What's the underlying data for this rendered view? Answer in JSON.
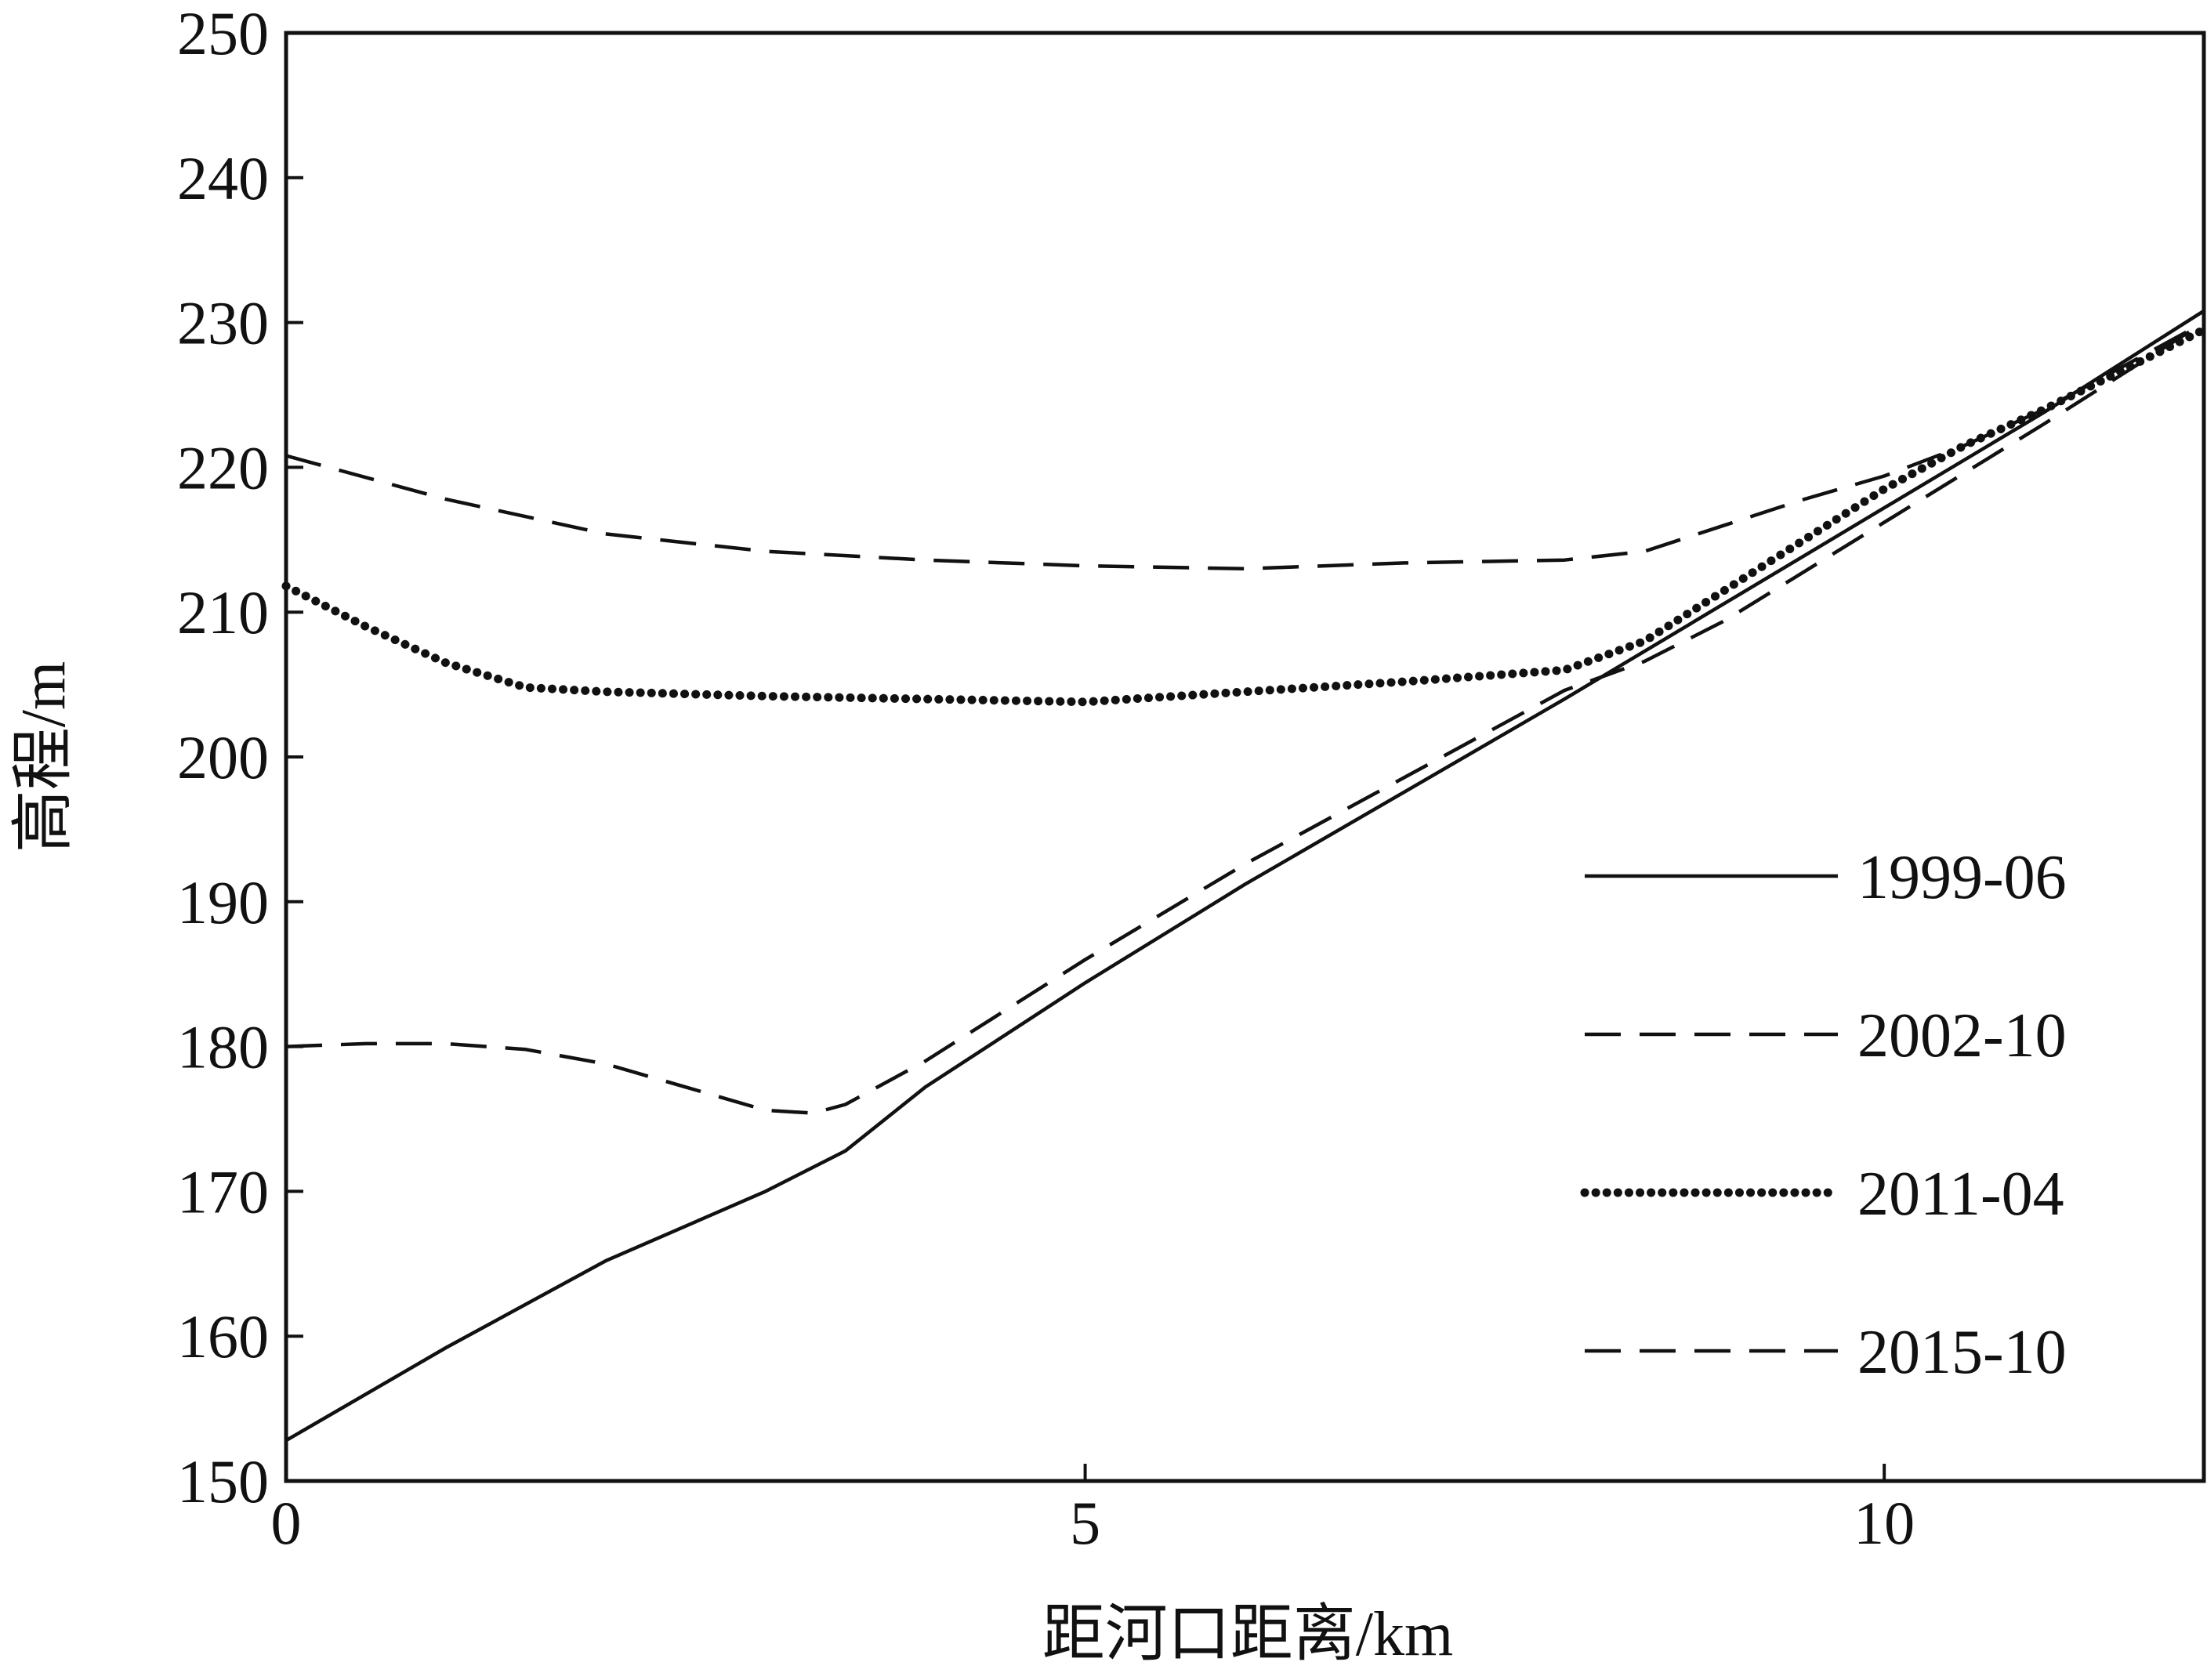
{
  "chart_data": {
    "type": "line",
    "title": "",
    "xlabel": "距河口距离/km",
    "ylabel": "高程/m",
    "xlim": [
      0,
      12
    ],
    "ylim": [
      150,
      250
    ],
    "xticks": [
      0,
      5,
      10
    ],
    "yticks": [
      150,
      160,
      170,
      180,
      190,
      200,
      210,
      220,
      230,
      240,
      250
    ],
    "grid": false,
    "legend_position": "right",
    "series": [
      {
        "name": "1999-06",
        "style": "solid",
        "color": "#111111",
        "x": [
          0,
          1,
          2,
          3,
          3.5,
          4,
          5,
          6,
          7,
          8,
          9,
          10,
          11,
          12
        ],
        "y": [
          152.8,
          159.2,
          165.2,
          170,
          172.8,
          177.2,
          184.4,
          191.2,
          197.6,
          204,
          210.6,
          217.2,
          223.8,
          230.8
        ]
      },
      {
        "name": "2002-10",
        "style": "dashed",
        "color": "#111111",
        "x": [
          0,
          0.5,
          1,
          1.5,
          2,
          2.5,
          3,
          3.3,
          3.5,
          4,
          5,
          6,
          7,
          8,
          8.5,
          9,
          10,
          11,
          12
        ],
        "y": [
          180,
          180.2,
          180.2,
          179.8,
          178.8,
          177.2,
          175.6,
          175.4,
          176,
          179,
          186,
          192.6,
          198.6,
          204.6,
          206.6,
          209.4,
          216.2,
          223,
          230
        ]
      },
      {
        "name": "2011-04",
        "style": "dotted",
        "color": "#111111",
        "x": [
          0,
          0.5,
          1,
          1.5,
          2,
          3,
          4,
          5,
          6,
          7,
          8,
          8.5,
          9,
          9.5,
          10,
          10.5,
          11,
          12
        ],
        "y": [
          211.8,
          209,
          206.5,
          204.8,
          204.5,
          204.2,
          204,
          203.8,
          204.5,
          205.2,
          206,
          208,
          211.5,
          215,
          218.5,
          221.5,
          224,
          229.5
        ]
      },
      {
        "name": "2015-10",
        "style": "dashed",
        "color": "#111111",
        "x": [
          0,
          1,
          2,
          3,
          4,
          5,
          6,
          7,
          8,
          8.5,
          9,
          9.5,
          10,
          10.5,
          11,
          12
        ],
        "y": [
          220.8,
          217.8,
          215.4,
          214.2,
          213.6,
          213.2,
          213,
          213.4,
          213.6,
          214.2,
          216,
          217.8,
          219.4,
          221.5,
          224,
          230
        ]
      }
    ]
  }
}
